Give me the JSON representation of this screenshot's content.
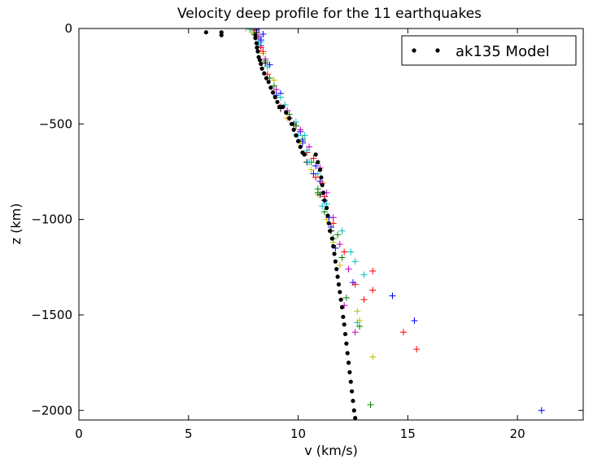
{
  "chart_data": {
    "type": "scatter",
    "title": "Velocity deep profile for the 11 earthquakes",
    "xlabel": "v (km/s)",
    "ylabel": "z (km)",
    "xlim": [
      0,
      23
    ],
    "ylim": [
      -2050,
      0
    ],
    "xticks": [
      0,
      5,
      10,
      15,
      20
    ],
    "yticks": [
      0,
      -500,
      -1000,
      -1500,
      -2000
    ],
    "grid": false,
    "legend": {
      "placement": "top-right",
      "entries": [
        "ak135 Model"
      ]
    },
    "model": {
      "name": "ak135 Model",
      "marker": "dot",
      "color": "#000000",
      "points": [
        [
          5.8,
          -20
        ],
        [
          6.5,
          -20
        ],
        [
          6.5,
          -35
        ],
        [
          8.05,
          -35
        ],
        [
          8.05,
          -50
        ],
        [
          8.1,
          -77
        ],
        [
          8.12,
          -100
        ],
        [
          8.16,
          -120
        ],
        [
          8.2,
          -150
        ],
        [
          8.25,
          -165
        ],
        [
          8.3,
          -185
        ],
        [
          8.35,
          -210
        ],
        [
          8.45,
          -235
        ],
        [
          8.55,
          -260
        ],
        [
          8.65,
          -280
        ],
        [
          8.75,
          -310
        ],
        [
          8.85,
          -335
        ],
        [
          8.95,
          -360
        ],
        [
          9.05,
          -385
        ],
        [
          9.15,
          -410
        ],
        [
          9.3,
          -410
        ],
        [
          9.45,
          -440
        ],
        [
          9.6,
          -470
        ],
        [
          9.7,
          -500
        ],
        [
          9.8,
          -530
        ],
        [
          9.9,
          -560
        ],
        [
          10.0,
          -590
        ],
        [
          10.1,
          -620
        ],
        [
          10.2,
          -650
        ],
        [
          10.28,
          -660
        ],
        [
          10.8,
          -660
        ],
        [
          10.9,
          -700
        ],
        [
          11.0,
          -740
        ],
        [
          11.05,
          -780
        ],
        [
          11.1,
          -820
        ],
        [
          11.15,
          -860
        ],
        [
          11.2,
          -900
        ],
        [
          11.3,
          -940
        ],
        [
          11.35,
          -980
        ],
        [
          11.4,
          -1020
        ],
        [
          11.45,
          -1060
        ],
        [
          11.55,
          -1100
        ],
        [
          11.6,
          -1140
        ],
        [
          11.65,
          -1180
        ],
        [
          11.7,
          -1220
        ],
        [
          11.75,
          -1260
        ],
        [
          11.8,
          -1300
        ],
        [
          11.85,
          -1340
        ],
        [
          11.9,
          -1380
        ],
        [
          11.95,
          -1420
        ],
        [
          12.0,
          -1460
        ],
        [
          12.05,
          -1510
        ],
        [
          12.1,
          -1550
        ],
        [
          12.15,
          -1600
        ],
        [
          12.2,
          -1650
        ],
        [
          12.25,
          -1700
        ],
        [
          12.3,
          -1750
        ],
        [
          12.35,
          -1800
        ],
        [
          12.4,
          -1850
        ],
        [
          12.45,
          -1900
        ],
        [
          12.5,
          -1950
        ],
        [
          12.55,
          -2000
        ],
        [
          12.6,
          -2040
        ]
      ]
    },
    "earthquakes": [
      {
        "color": "#0000ff",
        "points": [
          [
            8.2,
            0
          ],
          [
            8.1,
            -5
          ],
          [
            8.4,
            -30
          ],
          [
            8.3,
            -90
          ],
          [
            8.7,
            -190
          ],
          [
            9.2,
            -340
          ],
          [
            10.1,
            -540
          ],
          [
            10.2,
            -600
          ],
          [
            10.8,
            -720
          ],
          [
            11.0,
            -800
          ],
          [
            11.2,
            -900
          ],
          [
            11.5,
            -1040
          ],
          [
            11.7,
            -1150
          ],
          [
            12.5,
            -1330
          ],
          [
            14.3,
            -1400
          ],
          [
            15.3,
            -1530
          ],
          [
            21.1,
            -2000
          ]
        ]
      },
      {
        "color": "#008000",
        "points": [
          [
            7.9,
            -5
          ],
          [
            8.2,
            -50
          ],
          [
            8.5,
            -170
          ],
          [
            8.9,
            -300
          ],
          [
            9.6,
            -450
          ],
          [
            10.2,
            -580
          ],
          [
            10.6,
            -700
          ],
          [
            10.9,
            -840
          ],
          [
            11.2,
            -960
          ],
          [
            11.6,
            -1100
          ],
          [
            12.0,
            -1200
          ],
          [
            12.2,
            -1410
          ],
          [
            12.8,
            -1560
          ],
          [
            13.3,
            -1970
          ]
        ]
      },
      {
        "color": "#ff0000",
        "points": [
          [
            8.0,
            -10
          ],
          [
            8.3,
            -100
          ],
          [
            8.6,
            -240
          ],
          [
            9.2,
            -410
          ],
          [
            9.9,
            -510
          ],
          [
            10.4,
            -650
          ],
          [
            10.8,
            -780
          ],
          [
            11.2,
            -880
          ],
          [
            11.6,
            -1020
          ],
          [
            12.1,
            -1170
          ],
          [
            12.6,
            -1340
          ],
          [
            13.0,
            -1420
          ],
          [
            14.8,
            -1590
          ]
        ]
      },
      {
        "color": "#00bfbf",
        "points": [
          [
            7.8,
            -5
          ],
          [
            8.3,
            -70
          ],
          [
            8.6,
            -200
          ],
          [
            9.2,
            -360
          ],
          [
            9.9,
            -490
          ],
          [
            10.3,
            -560
          ],
          [
            10.4,
            -640
          ],
          [
            10.9,
            -760
          ],
          [
            11.3,
            -920
          ],
          [
            12.0,
            -1060
          ],
          [
            12.4,
            -1170
          ],
          [
            12.6,
            -1220
          ],
          [
            13.0,
            -1290
          ],
          [
            12.7,
            -1540
          ]
        ]
      },
      {
        "color": "#bf00bf",
        "points": [
          [
            8.0,
            0
          ],
          [
            8.2,
            -40
          ],
          [
            8.5,
            -160
          ],
          [
            9.0,
            -320
          ],
          [
            9.5,
            -430
          ],
          [
            10.1,
            -530
          ],
          [
            10.5,
            -620
          ],
          [
            11.0,
            -730
          ],
          [
            11.3,
            -860
          ],
          [
            11.6,
            -990
          ],
          [
            11.9,
            -1130
          ],
          [
            12.3,
            -1260
          ],
          [
            12.1,
            -1450
          ],
          [
            12.6,
            -1590
          ]
        ]
      },
      {
        "color": "#bfbf00",
        "points": [
          [
            7.6,
            0
          ],
          [
            7.9,
            -20
          ],
          [
            8.4,
            -130
          ],
          [
            8.9,
            -270
          ],
          [
            9.5,
            -470
          ],
          [
            10.1,
            -600
          ],
          [
            10.6,
            -740
          ],
          [
            10.9,
            -870
          ],
          [
            11.3,
            -1000
          ],
          [
            11.6,
            -1120
          ],
          [
            11.9,
            -1240
          ],
          [
            12.7,
            -1480
          ],
          [
            12.8,
            -1530
          ],
          [
            13.4,
            -1720
          ]
        ]
      },
      {
        "color": "#000000",
        "points": [
          [
            8.1,
            -20
          ],
          [
            8.5,
            -180
          ],
          [
            9.2,
            -420
          ],
          [
            9.8,
            -500
          ],
          [
            10.4,
            -700
          ],
          [
            11.0,
            -870
          ],
          [
            11.5,
            -1060
          ]
        ]
      },
      {
        "color": "#0000ff",
        "points": [
          [
            8.3,
            -60
          ],
          [
            9.0,
            -350
          ],
          [
            10.2,
            -590
          ],
          [
            10.7,
            -760
          ],
          [
            11.4,
            -990
          ]
        ]
      },
      {
        "color": "#008000",
        "points": [
          [
            8.0,
            -30
          ],
          [
            8.7,
            -260
          ],
          [
            9.9,
            -510
          ],
          [
            10.9,
            -860
          ],
          [
            11.8,
            -1080
          ]
        ]
      },
      {
        "color": "#ff0000",
        "points": [
          [
            8.4,
            -120
          ],
          [
            9.6,
            -470
          ],
          [
            10.7,
            -680
          ],
          [
            11.1,
            -810
          ],
          [
            13.4,
            -1270
          ],
          [
            13.4,
            -1370
          ],
          [
            15.4,
            -1680
          ]
        ]
      },
      {
        "color": "#00bfbf",
        "points": [
          [
            8.2,
            -80
          ],
          [
            9.4,
            -400
          ],
          [
            10.0,
            -560
          ],
          [
            10.5,
            -700
          ],
          [
            11.1,
            -930
          ]
        ]
      }
    ]
  }
}
